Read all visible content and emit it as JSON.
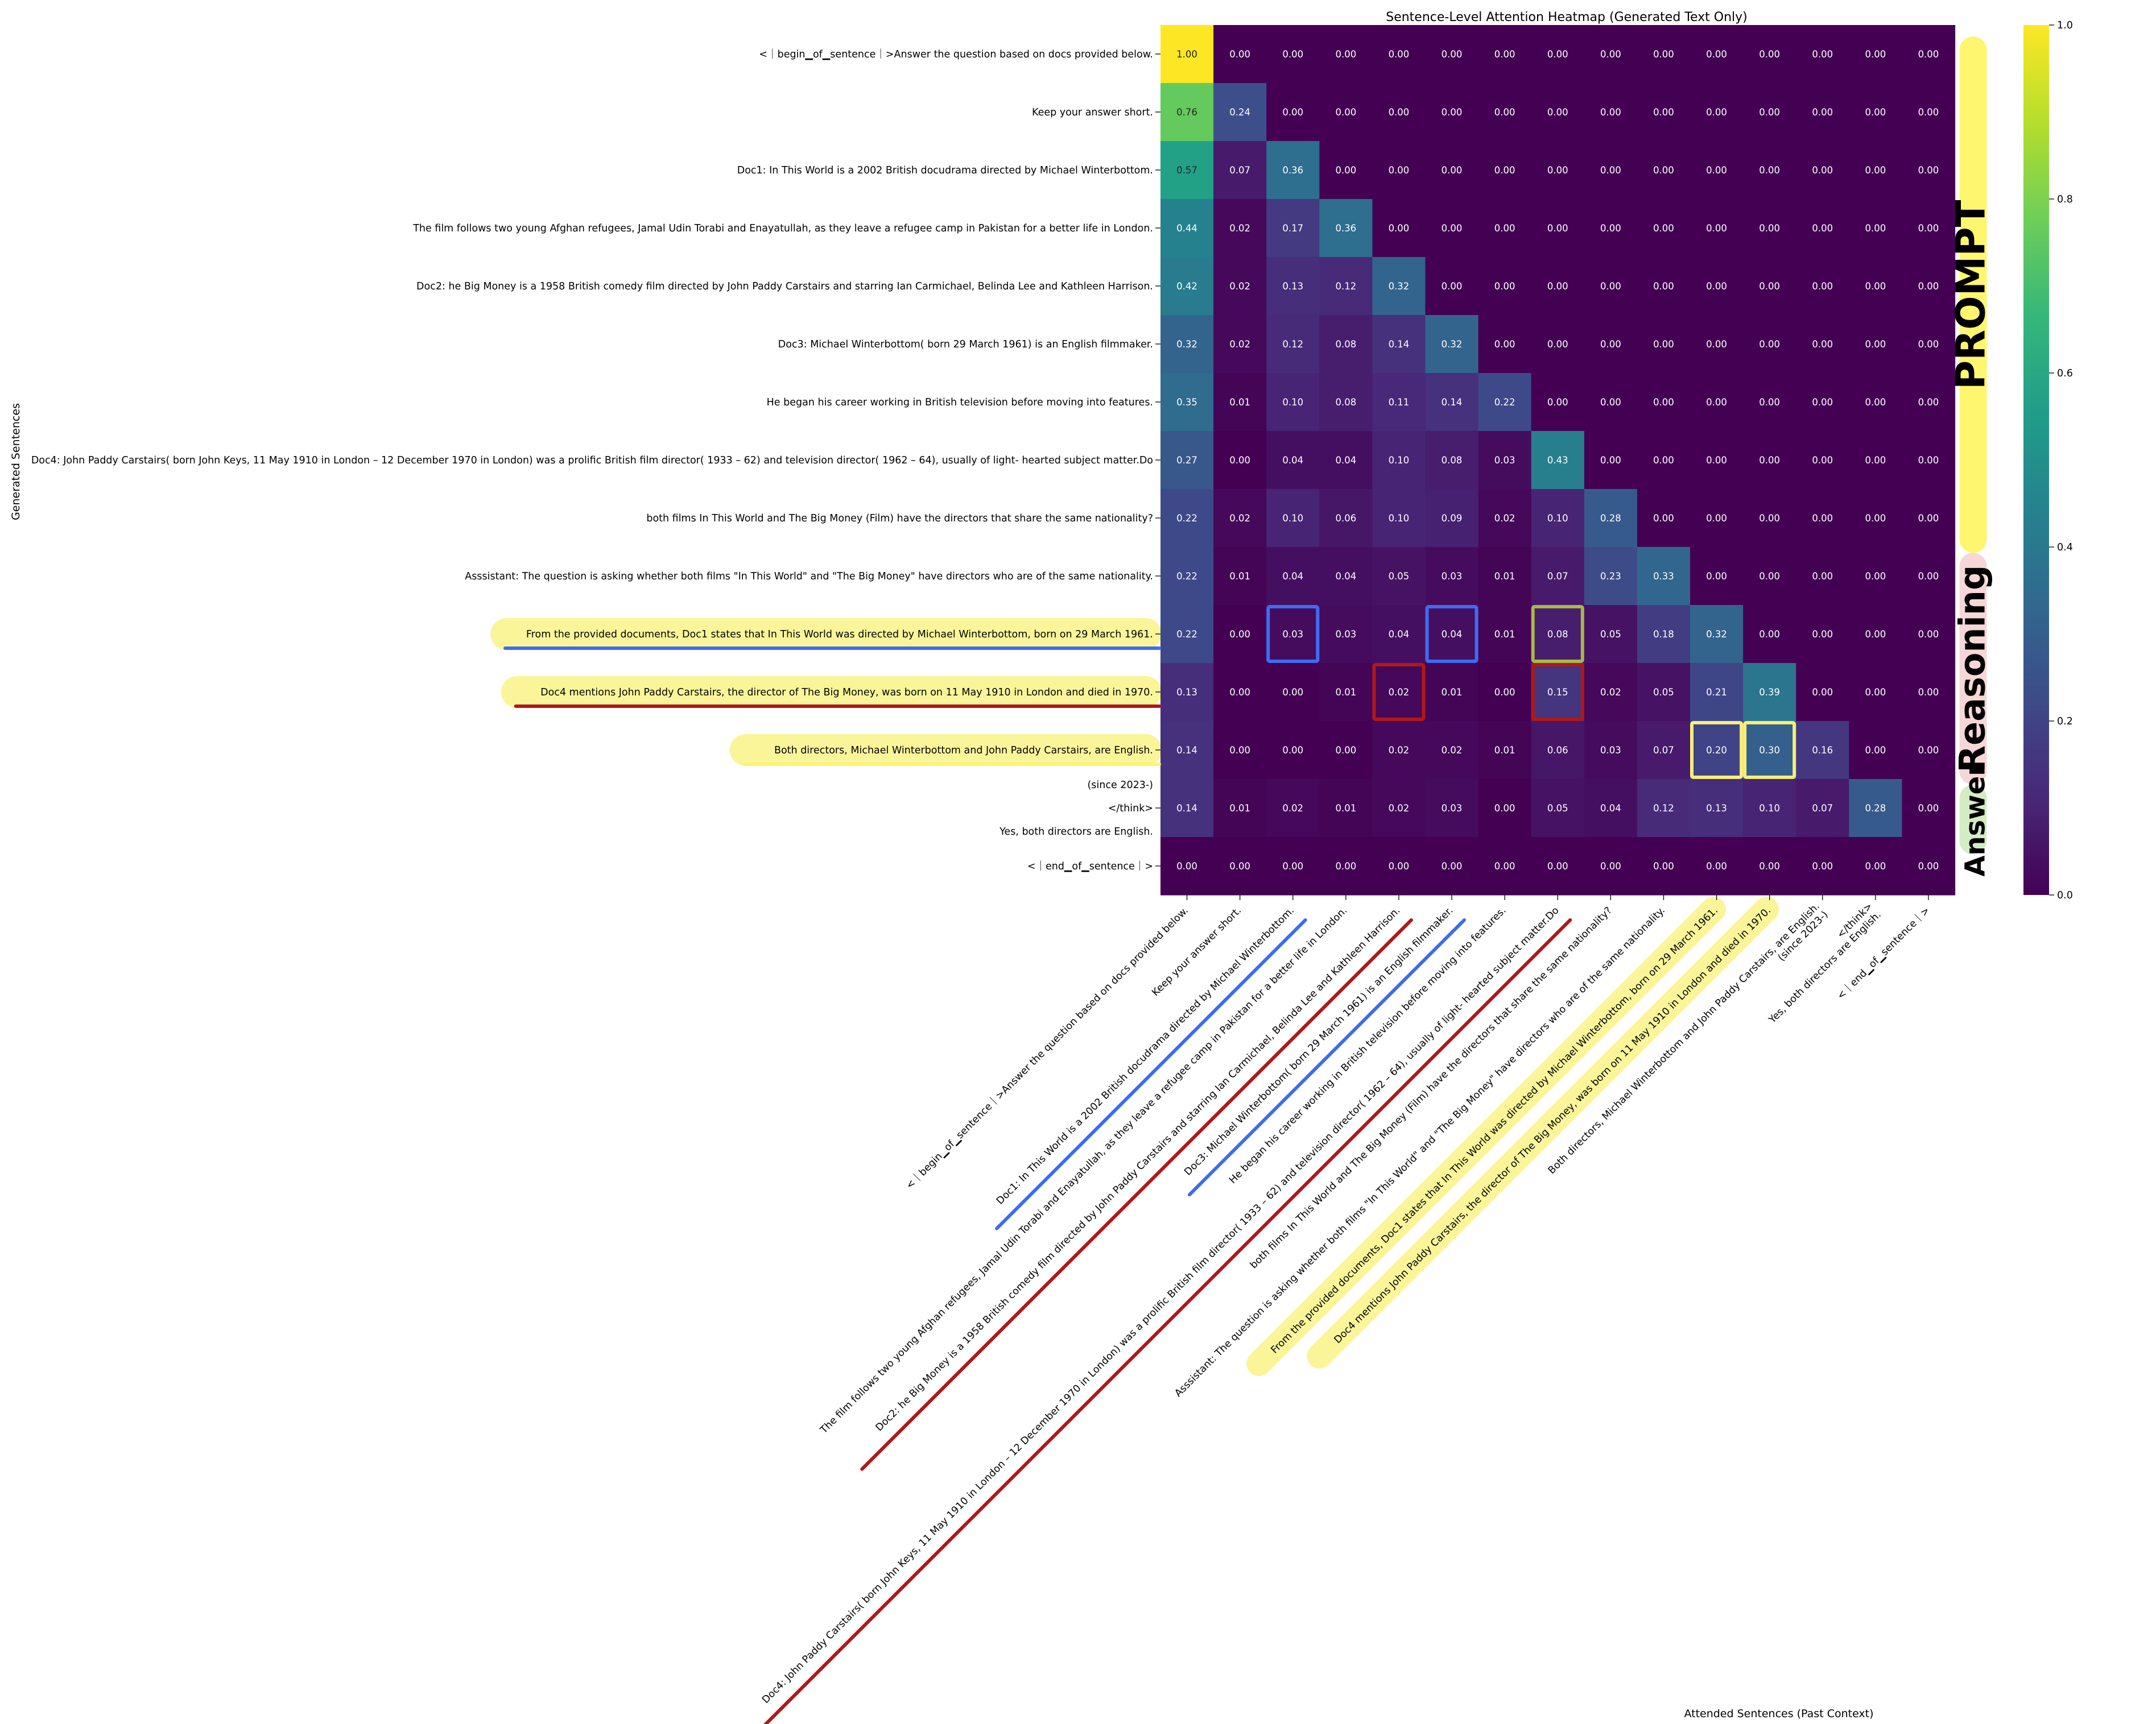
{
  "chart_data": {
    "type": "heatmap",
    "title": "Sentence-Level Attention Heatmap (Generated Text Only)",
    "xlabel": "Attended Sentences (Past Context)",
    "ylabel": "Generated Sentences",
    "row_labels": [
      "<｜begin▁of▁sentence｜>Answer the question based on docs provided below.",
      "Keep your answer short.",
      "Doc1: In This World is a 2002 British docudrama directed by Michael Winterbottom.",
      "The film follows two young Afghan refugees, Jamal Udin Torabi and Enayatullah, as they leave a refugee camp in Pakistan for a better life in London.",
      "Doc2: he Big Money is a 1958 British comedy film directed by John Paddy Carstairs and starring Ian Carmichael, Belinda Lee and Kathleen Harrison.",
      "Doc3: Michael Winterbottom( born 29 March 1961) is an English filmmaker.",
      "He began his career working in British television before moving into features.",
      "Doc4: John Paddy Carstairs( born John Keys, 11 May 1910 in London – 12 December 1970 in London) was a prolific British film director( 1933 – 62) and television director( 1962 – 64), usually of light- hearted subject matter.Do",
      "both films In This World and The Big Money (Film) have the directors that share the same nationality?",
      "Asssistant:  The question is asking whether both films \"In This World\" and \"The Big Money\" have directors who are of the same nationality.",
      "From the provided documents, Doc1 states that In This World was directed by Michael Winterbottom, born on 29 March 1961.",
      "Doc4 mentions John Paddy Carstairs, the director of The Big Money, was born on 11 May 1910 in London and died in 1970.",
      "Both directors, Michael Winterbottom and John Paddy Carstairs, are English.",
      [
        "(since 2023-)",
        "</think>",
        "Yes, both directors are English."
      ],
      "<｜end▁of▁sentence｜>"
    ],
    "col_labels": [
      "<｜begin▁of▁sentence｜>Answer the question based on docs provided below.",
      "Keep your answer short.",
      "Doc1: In This World is a 2002 British docudrama directed by Michael Winterbottom.",
      "The film follows two young Afghan refugees, Jamal Udin Torabi and Enayatullah, as they leave a refugee camp in Pakistan for a better life in London.",
      "Doc2: he Big Money is a 1958 British comedy film directed by John Paddy Carstairs and starring Ian Carmichael, Belinda Lee and Kathleen Harrison.",
      "Doc3: Michael Winterbottom( born 29 March 1961) is an English filmmaker.",
      "He began his career working in British television before moving into features.",
      "Doc4: John Paddy Carstairs( born John Keys, 11 May 1910 in London – 12 December 1970 in London) was a prolific British film director( 1933 – 62) and television director( 1962 – 64), usually of light- hearted subject matter.Do",
      "both films In This World and The Big Money (Film) have the directors that share the same nationality?",
      "Asssistant:  The question is asking whether both films \"In This World\" and \"The Big Money\" have directors who are of the same nationality.",
      "From the provided documents, Doc1 states that In This World was directed by Michael Winterbottom, born on 29 March 1961.",
      "Doc4 mentions John Paddy Carstairs, the director of The Big Money, was born on 11 May 1910 in London and died in 1970.",
      [
        "Both directors, Michael Winterbottom and John Paddy Carstairs, are English.",
        "(since 2023-)"
      ],
      [
        "</think>",
        "Yes, both directors are English."
      ],
      "<｜end▁of▁sentence｜>"
    ],
    "values": [
      [
        1.0,
        0.0,
        0.0,
        0.0,
        0.0,
        0.0,
        0.0,
        0.0,
        0.0,
        0.0,
        0.0,
        0.0,
        0.0,
        0.0,
        0.0
      ],
      [
        0.76,
        0.24,
        0.0,
        0.0,
        0.0,
        0.0,
        0.0,
        0.0,
        0.0,
        0.0,
        0.0,
        0.0,
        0.0,
        0.0,
        0.0
      ],
      [
        0.57,
        0.07,
        0.36,
        0.0,
        0.0,
        0.0,
        0.0,
        0.0,
        0.0,
        0.0,
        0.0,
        0.0,
        0.0,
        0.0,
        0.0
      ],
      [
        0.44,
        0.02,
        0.17,
        0.36,
        0.0,
        0.0,
        0.0,
        0.0,
        0.0,
        0.0,
        0.0,
        0.0,
        0.0,
        0.0,
        0.0
      ],
      [
        0.42,
        0.02,
        0.13,
        0.12,
        0.32,
        0.0,
        0.0,
        0.0,
        0.0,
        0.0,
        0.0,
        0.0,
        0.0,
        0.0,
        0.0
      ],
      [
        0.32,
        0.02,
        0.12,
        0.08,
        0.14,
        0.32,
        0.0,
        0.0,
        0.0,
        0.0,
        0.0,
        0.0,
        0.0,
        0.0,
        0.0
      ],
      [
        0.35,
        0.01,
        0.1,
        0.08,
        0.11,
        0.14,
        0.22,
        0.0,
        0.0,
        0.0,
        0.0,
        0.0,
        0.0,
        0.0,
        0.0
      ],
      [
        0.27,
        0.0,
        0.04,
        0.04,
        0.1,
        0.08,
        0.03,
        0.43,
        0.0,
        0.0,
        0.0,
        0.0,
        0.0,
        0.0,
        0.0
      ],
      [
        0.22,
        0.02,
        0.1,
        0.06,
        0.1,
        0.09,
        0.02,
        0.1,
        0.28,
        0.0,
        0.0,
        0.0,
        0.0,
        0.0,
        0.0
      ],
      [
        0.22,
        0.01,
        0.04,
        0.04,
        0.05,
        0.03,
        0.01,
        0.07,
        0.23,
        0.33,
        0.0,
        0.0,
        0.0,
        0.0,
        0.0
      ],
      [
        0.22,
        0.0,
        0.03,
        0.03,
        0.04,
        0.04,
        0.01,
        0.08,
        0.05,
        0.18,
        0.32,
        0.0,
        0.0,
        0.0,
        0.0
      ],
      [
        0.13,
        0.0,
        0.0,
        0.01,
        0.02,
        0.01,
        0.0,
        0.15,
        0.02,
        0.05,
        0.21,
        0.39,
        0.0,
        0.0,
        0.0
      ],
      [
        0.14,
        0.0,
        0.0,
        0.0,
        0.02,
        0.02,
        0.01,
        0.06,
        0.03,
        0.07,
        0.2,
        0.3,
        0.16,
        0.0,
        0.0
      ],
      [
        0.14,
        0.01,
        0.02,
        0.01,
        0.02,
        0.03,
        0.0,
        0.05,
        0.04,
        0.12,
        0.13,
        0.1,
        0.07,
        0.28,
        0.0
      ],
      [
        0.0,
        0.0,
        0.0,
        0.0,
        0.0,
        0.0,
        0.0,
        0.0,
        0.0,
        0.0,
        0.0,
        0.0,
        0.0,
        0.0,
        0.0
      ]
    ],
    "value_format": "2 decimals",
    "colormap": "viridis",
    "vmin": 0.0,
    "vmax": 1.0,
    "colorbar_ticks": [
      "0.0",
      "0.2",
      "0.4",
      "0.6",
      "0.8",
      "1.0"
    ],
    "grid": false,
    "annotations": {
      "section_labels": [
        "PROMPT",
        "Reasoning",
        "Answer"
      ],
      "section_colors": [
        "#fdf66e",
        "#f6d6d6",
        "#d4ecc4"
      ],
      "highlighted_rows": [
        10,
        11,
        12
      ],
      "highlighted_cols": [
        10,
        11
      ],
      "underlined_rows": [
        {
          "row": 10,
          "color": "#3e6cf0"
        },
        {
          "row": 11,
          "color": "#b01818"
        },
        {
          "row": 12,
          "color": "#fdf66e"
        }
      ],
      "underlined_cols": [
        {
          "col": 2,
          "color": "#3e6cf0"
        },
        {
          "col": 5,
          "color": "#3e6cf0"
        },
        {
          "col": 4,
          "color": "#b01818"
        },
        {
          "col": 7,
          "color": "#b01818"
        }
      ],
      "boxed_cells": [
        {
          "row": 10,
          "col": 2,
          "color": "#3e6cf0"
        },
        {
          "row": 10,
          "col": 5,
          "color": "#3e6cf0"
        },
        {
          "row": 10,
          "col": 7,
          "color": "#a8b848"
        },
        {
          "row": 11,
          "col": 4,
          "color": "#b01818"
        },
        {
          "row": 11,
          "col": 7,
          "color": "#b01818"
        },
        {
          "row": 12,
          "col": 10,
          "color": "#f6ee78"
        },
        {
          "row": 12,
          "col": 11,
          "color": "#f6ee78"
        }
      ]
    }
  }
}
